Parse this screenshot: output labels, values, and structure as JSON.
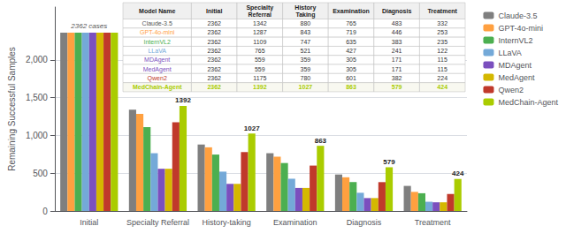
{
  "chart_data": {
    "type": "bar",
    "categories": [
      "Initial",
      "Specialty Referral",
      "History-taking",
      "Examination",
      "Diagnosis",
      "Treatment"
    ],
    "series": [
      {
        "name": "Claude-3.5",
        "color": "#7F7F7F",
        "values": [
          2362,
          1342,
          880,
          765,
          483,
          332
        ]
      },
      {
        "name": "GPT-4o-mini",
        "color": "#FFA040",
        "values": [
          2362,
          1287,
          843,
          719,
          446,
          253
        ]
      },
      {
        "name": "InternVL2",
        "color": "#4CAF50",
        "values": [
          2362,
          1109,
          747,
          635,
          383,
          235
        ]
      },
      {
        "name": "LLaVA",
        "color": "#74A9D8",
        "values": [
          2362,
          765,
          521,
          427,
          241,
          122
        ]
      },
      {
        "name": "MDAgent",
        "color": "#7B4FBE",
        "values": [
          2362,
          559,
          359,
          305,
          171,
          115
        ]
      },
      {
        "name": "MedAgent",
        "color": "#D4B800",
        "values": [
          2362,
          559,
          359,
          305,
          171,
          115
        ]
      },
      {
        "name": "Qwen2",
        "color": "#C0392B",
        "values": [
          2362,
          1175,
          780,
          601,
          382,
          224
        ]
      },
      {
        "name": "MedChain-Agent",
        "color": "#AACC00",
        "values": [
          2362,
          1392,
          1027,
          863,
          579,
          424
        ]
      }
    ],
    "ylabel": "Remaining Successful Samples",
    "ylim": [
      0,
      2700
    ],
    "yticks": [
      0,
      500,
      1000,
      1500,
      2000
    ],
    "grid": true,
    "legend": "right",
    "annotations": [
      {
        "text": "2362 cases",
        "x": "Initial",
        "y": 2362
      },
      {
        "text": "1392",
        "x": "Specialty Referral",
        "y": 1392,
        "series": "MedChain-Agent"
      },
      {
        "text": "1027",
        "x": "History-taking",
        "y": 1027,
        "series": "MedChain-Agent"
      },
      {
        "text": "863",
        "x": "Examination",
        "y": 863,
        "series": "MedChain-Agent"
      },
      {
        "text": "579",
        "x": "Diagnosis",
        "y": 579,
        "series": "MedChain-Agent"
      },
      {
        "text": "424",
        "x": "Treatment",
        "y": 424,
        "series": "MedChain-Agent"
      }
    ],
    "table": {
      "columns": [
        "Model Name",
        "Initial",
        "Specialty\nReferral",
        "History\nTaking",
        "Examination",
        "Diagnosis",
        "Treatment"
      ],
      "name_colors": [
        "#555555",
        "#FFA040",
        "#4CAF50",
        "#74A9D8",
        "#7B4FBE",
        "#7B4FBE",
        "#C0392B",
        "#AACC00"
      ],
      "highlight": "MedChain-Agent"
    }
  }
}
